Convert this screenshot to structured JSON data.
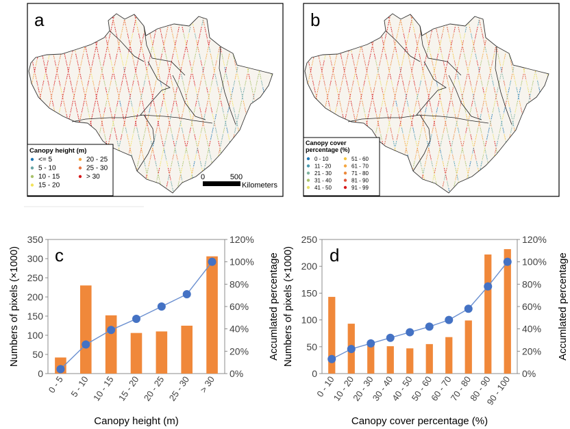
{
  "panels": {
    "a": {
      "letter": "a"
    },
    "b": {
      "letter": "b"
    },
    "c": {
      "letter": "c"
    },
    "d": {
      "letter": "d"
    }
  },
  "map_a": {
    "legend_title": "Canopy height (m)",
    "legend_items": [
      {
        "label": "<= 5",
        "color": "#1f77b4"
      },
      {
        "label": "20 - 25",
        "color": "#f4a640"
      },
      {
        "label": "5 - 10",
        "color": "#66a3a3"
      },
      {
        "label": "25 - 30",
        "color": "#e8713c"
      },
      {
        "label": "10 - 15",
        "color": "#a9c26a"
      },
      {
        "label": "> 30",
        "color": "#d7191c"
      },
      {
        "label": "15 - 20",
        "color": "#f2e35c"
      }
    ],
    "scalebar": {
      "zero": "0",
      "value": "500",
      "unit": "Kilometers"
    }
  },
  "map_b": {
    "legend_title_line1": "Canopy cover",
    "legend_title_line2": "percentage (%)",
    "legend_items": [
      {
        "label": "0 - 10",
        "color": "#1f77b4"
      },
      {
        "label": "51 - 60",
        "color": "#f4c542"
      },
      {
        "label": "11 - 20",
        "color": "#4a9bb0"
      },
      {
        "label": "61 - 70",
        "color": "#f4a640"
      },
      {
        "label": "21 - 30",
        "color": "#7fb3a0"
      },
      {
        "label": "71 - 80",
        "color": "#ec8a3c"
      },
      {
        "label": "31 - 40",
        "color": "#a9c26a"
      },
      {
        "label": "81 - 90",
        "color": "#e0553a"
      },
      {
        "label": "41 - 50",
        "color": "#e7e06a"
      },
      {
        "label": "91 - 99",
        "color": "#d7191c"
      }
    ]
  },
  "chart_data": [
    {
      "type": "bar",
      "panel": "c",
      "categories": [
        "0 - 5",
        "5 - 10",
        "10 - 15",
        "15 - 20",
        "20 - 25",
        "25 - 30",
        "> 30"
      ],
      "series": [
        {
          "axis": "left",
          "type": "bar",
          "values": [
            42,
            230,
            152,
            106,
            110,
            125,
            306
          ],
          "color": "#f0883a"
        },
        {
          "axis": "right",
          "type": "line",
          "values": [
            4,
            26,
            39,
            49,
            60,
            71,
            100
          ],
          "color": "#4472c4"
        }
      ],
      "xlabel": "Canopy height (m)",
      "ylabel": "Numbers of pixels (×1000)",
      "y2label": "Accumlated percentage",
      "ylim": [
        0,
        350
      ],
      "yticks": [
        "0",
        "50",
        "100",
        "150",
        "200",
        "250",
        "300",
        "350"
      ],
      "y2lim": [
        0,
        120
      ],
      "y2ticks": [
        "0%",
        "20%",
        "40%",
        "60%",
        "80%",
        "100%",
        "120%"
      ],
      "grid": false
    },
    {
      "type": "bar",
      "panel": "d",
      "categories": [
        "0 - 10",
        "10 - 20",
        "20 - 30",
        "30 - 40",
        "40 - 50",
        "50 - 60",
        "60 - 70",
        "70 - 80",
        "80 - 90",
        "90 - 100"
      ],
      "series": [
        {
          "axis": "left",
          "type": "bar",
          "values": [
            143,
            93,
            60,
            51,
            47,
            55,
            68,
            99,
            222,
            232
          ],
          "color": "#f0883a"
        },
        {
          "axis": "right",
          "type": "line",
          "values": [
            13,
            22,
            27,
            32,
            37,
            42,
            48,
            58,
            78,
            100
          ],
          "color": "#4472c4"
        }
      ],
      "xlabel": "Canopy cover percentage (%)",
      "ylabel": "Numbers of pixels (×1000)",
      "y2label": "Accumlated percentage",
      "ylim": [
        0,
        250
      ],
      "yticks": [
        "0",
        "50",
        "100",
        "150",
        "200",
        "250"
      ],
      "y2lim": [
        0,
        120
      ],
      "y2ticks": [
        "0%",
        "20%",
        "40%",
        "60%",
        "80%",
        "100%",
        "120%"
      ],
      "grid": false
    }
  ]
}
